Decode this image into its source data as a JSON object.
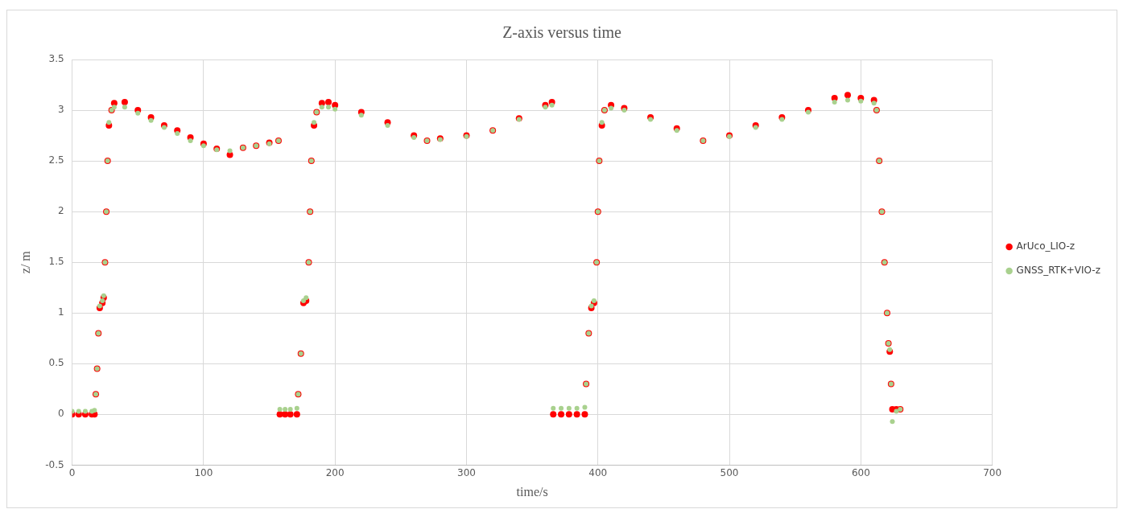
{
  "chart_data": {
    "type": "scatter",
    "title": "Z-axis versus time",
    "xlabel": "time/s",
    "ylabel": "z/ m",
    "xlim": [
      0,
      700
    ],
    "xticks": [
      0,
      100,
      200,
      300,
      400,
      500,
      600,
      700
    ],
    "ylim": [
      -0.5,
      3.5
    ],
    "yticks": [
      -0.5,
      0,
      0.5,
      1,
      1.5,
      2,
      2.5,
      3,
      3.5
    ],
    "grid": true,
    "legend": "right",
    "marker": "circle",
    "series": [
      {
        "name": "ArUco_LIO-z",
        "color": "#ff0000",
        "x": [
          0,
          5,
          10,
          15,
          17,
          18,
          19,
          20,
          21,
          23,
          24,
          25,
          26,
          27,
          28,
          30,
          32,
          40,
          50,
          60,
          70,
          80,
          90,
          100,
          110,
          120,
          130,
          140,
          150,
          157,
          158,
          162,
          166,
          171,
          172,
          174,
          176,
          178,
          180,
          181,
          182,
          184,
          186,
          190,
          195,
          200,
          220,
          240,
          260,
          270,
          280,
          300,
          320,
          340,
          360,
          365,
          366,
          372,
          378,
          384,
          390,
          391,
          393,
          395,
          397,
          399,
          400,
          401,
          403,
          405,
          410,
          420,
          440,
          460,
          480,
          500,
          520,
          540,
          560,
          580,
          590,
          600,
          610,
          612,
          614,
          616,
          618,
          620,
          621,
          622,
          623,
          624,
          627,
          630
        ],
        "values": [
          0,
          0,
          0,
          0,
          0,
          0.2,
          0.45,
          0.8,
          1.05,
          1.1,
          1.15,
          1.5,
          2,
          2.5,
          2.85,
          3,
          3.07,
          3.08,
          3,
          2.93,
          2.85,
          2.8,
          2.73,
          2.67,
          2.62,
          2.56,
          2.63,
          2.65,
          2.68,
          2.7,
          0,
          0,
          0,
          0,
          0.2,
          0.6,
          1.1,
          1.12,
          1.5,
          2,
          2.5,
          2.85,
          2.98,
          3.07,
          3.08,
          3.05,
          2.98,
          2.88,
          2.75,
          2.7,
          2.72,
          2.75,
          2.8,
          2.92,
          3.05,
          3.08,
          0,
          0,
          0,
          0,
          0,
          0.3,
          0.8,
          1.05,
          1.1,
          1.5,
          2,
          2.5,
          2.85,
          3,
          3.05,
          3.02,
          2.93,
          2.82,
          2.7,
          2.75,
          2.85,
          2.93,
          3,
          3.12,
          3.15,
          3.12,
          3.1,
          3,
          2.5,
          2,
          1.5,
          1,
          0.7,
          0.62,
          0.3,
          0.05,
          0.05,
          0.05
        ]
      },
      {
        "name": "GNSS_RTK+VIO-z",
        "color": "#a9d18e",
        "x": [
          0,
          5,
          10,
          15,
          17,
          18,
          19,
          20,
          21,
          23,
          24,
          25,
          26,
          27,
          28,
          30,
          32,
          40,
          50,
          60,
          70,
          80,
          90,
          100,
          110,
          120,
          130,
          140,
          150,
          157,
          158,
          162,
          166,
          171,
          172,
          174,
          176,
          178,
          180,
          181,
          182,
          184,
          186,
          190,
          195,
          200,
          220,
          240,
          260,
          270,
          280,
          300,
          320,
          340,
          360,
          365,
          366,
          372,
          378,
          384,
          390,
          391,
          393,
          395,
          397,
          399,
          400,
          401,
          403,
          405,
          410,
          420,
          440,
          460,
          480,
          500,
          520,
          540,
          560,
          580,
          590,
          600,
          610,
          612,
          614,
          616,
          618,
          620,
          621,
          622,
          623,
          624,
          627,
          630
        ],
        "values": [
          0.03,
          0.03,
          0.03,
          0.03,
          0.04,
          0.2,
          0.45,
          0.8,
          1.07,
          1.12,
          1.17,
          1.5,
          2,
          2.5,
          2.88,
          3,
          3.03,
          3.03,
          2.97,
          2.9,
          2.83,
          2.77,
          2.7,
          2.65,
          2.61,
          2.6,
          2.63,
          2.65,
          2.67,
          2.7,
          0.05,
          0.05,
          0.05,
          0.06,
          0.2,
          0.6,
          1.12,
          1.15,
          1.5,
          2,
          2.5,
          2.88,
          2.98,
          3.03,
          3.03,
          3.01,
          2.95,
          2.85,
          2.73,
          2.7,
          2.71,
          2.74,
          2.8,
          2.91,
          3.03,
          3.05,
          0.06,
          0.06,
          0.06,
          0.06,
          0.07,
          0.3,
          0.8,
          1.07,
          1.12,
          1.5,
          2,
          2.5,
          2.88,
          3,
          3.02,
          3,
          2.91,
          2.8,
          2.7,
          2.74,
          2.83,
          2.91,
          2.98,
          3.08,
          3.1,
          3.09,
          3.07,
          3,
          2.5,
          2,
          1.5,
          1,
          0.7,
          0.64,
          0.3,
          -0.07,
          0.03,
          0.05
        ]
      }
    ]
  }
}
